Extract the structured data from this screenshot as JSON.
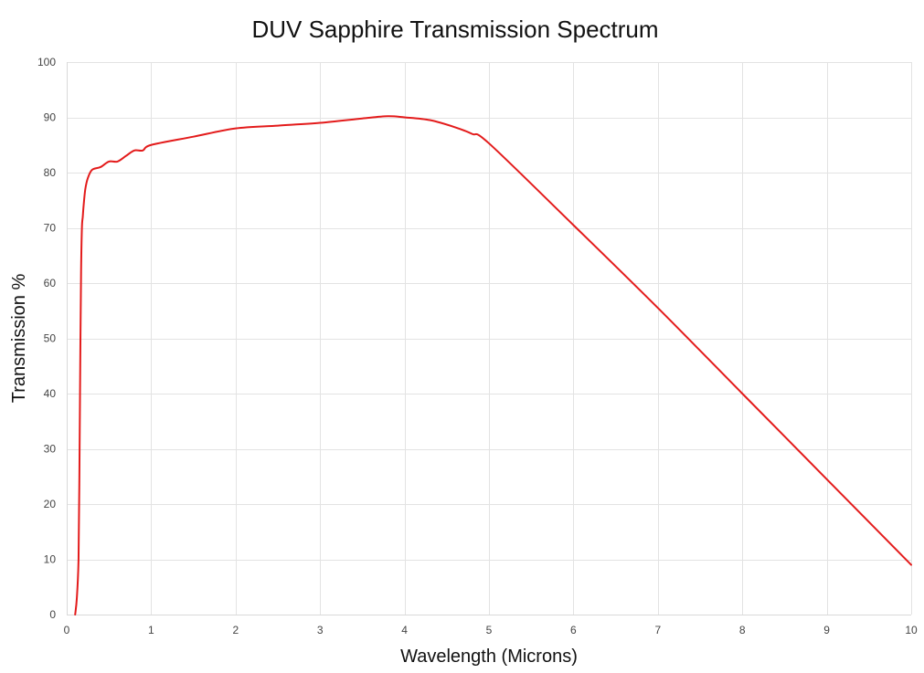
{
  "chart_data": {
    "type": "line",
    "title": "DUV Sapphire Transmission Spectrum",
    "xlabel": "Wavelength (Microns)",
    "ylabel": "Transmission %",
    "xlim": [
      0,
      10
    ],
    "ylim": [
      0,
      100
    ],
    "xticks": [
      "0",
      "1",
      "2",
      "3",
      "4",
      "5",
      "6",
      "7",
      "8",
      "9",
      "10"
    ],
    "yticks": [
      "0",
      "10",
      "20",
      "30",
      "40",
      "50",
      "60",
      "70",
      "80",
      "90",
      "100"
    ],
    "grid": true,
    "line_color": "#e31b1b",
    "series": [
      {
        "x": [
          0.1,
          0.12,
          0.14,
          0.15,
          0.16,
          0.17,
          0.18,
          0.19,
          0.2,
          0.22,
          0.25,
          0.3,
          0.4,
          0.5,
          0.6,
          0.7,
          0.8,
          0.9,
          1.0,
          1.5,
          2.0,
          2.5,
          3.0,
          3.5,
          3.8,
          4.0,
          4.3,
          4.6,
          4.8,
          5.0,
          6.0,
          7.0,
          8.0,
          9.0,
          10.0
        ],
        "y": [
          0,
          3,
          10,
          25,
          45,
          62,
          70,
          72,
          74,
          77,
          79,
          80.5,
          81,
          82,
          82,
          83,
          84,
          84,
          85,
          86.5,
          88,
          88.5,
          89,
          89.8,
          90.2,
          90,
          89.5,
          88.2,
          87,
          85.3,
          70.5,
          55.5,
          40,
          24.5,
          9
        ]
      }
    ]
  }
}
